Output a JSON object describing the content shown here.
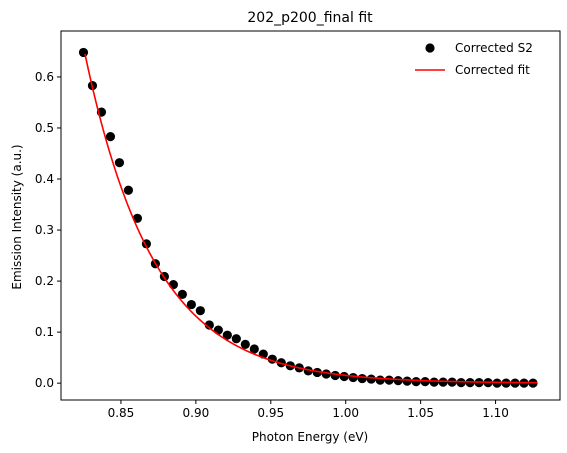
{
  "chart_data": {
    "type": "scatter",
    "title": "202_p200_final fit",
    "xlabel": "Photon Energy (eV)",
    "ylabel": "Emission Intensity (a.u.)",
    "xlim": [
      0.81,
      1.143
    ],
    "ylim": [
      -0.033,
      0.69
    ],
    "xticks": [
      0.85,
      0.9,
      0.95,
      1.0,
      1.05,
      1.1
    ],
    "xtick_labels": [
      "0.85",
      "0.90",
      "0.95",
      "1.00",
      "1.05",
      "1.10"
    ],
    "yticks": [
      0.0,
      0.1,
      0.2,
      0.3,
      0.4,
      0.5,
      0.6
    ],
    "ytick_labels": [
      "0.0",
      "0.1",
      "0.2",
      "0.3",
      "0.4",
      "0.5",
      "0.6"
    ],
    "grid": false,
    "legend_position": "top-right",
    "series": [
      {
        "name": "Corrected S2",
        "kind": "scatter",
        "color": "#000000",
        "x": [
          0.825,
          0.831,
          0.837,
          0.843,
          0.849,
          0.855,
          0.861,
          0.867,
          0.873,
          0.879,
          0.885,
          0.891,
          0.897,
          0.903,
          0.909,
          0.915,
          0.921,
          0.927,
          0.933,
          0.939,
          0.945,
          0.951,
          0.957,
          0.963,
          0.969,
          0.975,
          0.981,
          0.987,
          0.993,
          0.999,
          1.005,
          1.011,
          1.017,
          1.023,
          1.029,
          1.035,
          1.041,
          1.047,
          1.053,
          1.059,
          1.065,
          1.071,
          1.077,
          1.083,
          1.089,
          1.095,
          1.101,
          1.107,
          1.113,
          1.119,
          1.125
        ],
        "y": [
          0.648,
          0.583,
          0.531,
          0.483,
          0.432,
          0.378,
          0.323,
          0.273,
          0.234,
          0.209,
          0.193,
          0.174,
          0.154,
          0.142,
          0.114,
          0.104,
          0.094,
          0.087,
          0.076,
          0.067,
          0.057,
          0.047,
          0.04,
          0.034,
          0.03,
          0.024,
          0.021,
          0.018,
          0.015,
          0.013,
          0.011,
          0.009,
          0.008,
          0.006,
          0.006,
          0.005,
          0.004,
          0.003,
          0.003,
          0.002,
          0.002,
          0.002,
          0.001,
          0.001,
          0.001,
          0.001,
          0.0,
          0.0,
          0.0,
          0.0,
          0.0
        ]
      },
      {
        "name": "Corrected fit",
        "kind": "line",
        "color": "#ff0000",
        "model": {
          "amplitude": 0.645,
          "x0": 0.826,
          "decay": 0.0465,
          "x_start": 0.826,
          "x_end": 1.128
        }
      }
    ]
  }
}
